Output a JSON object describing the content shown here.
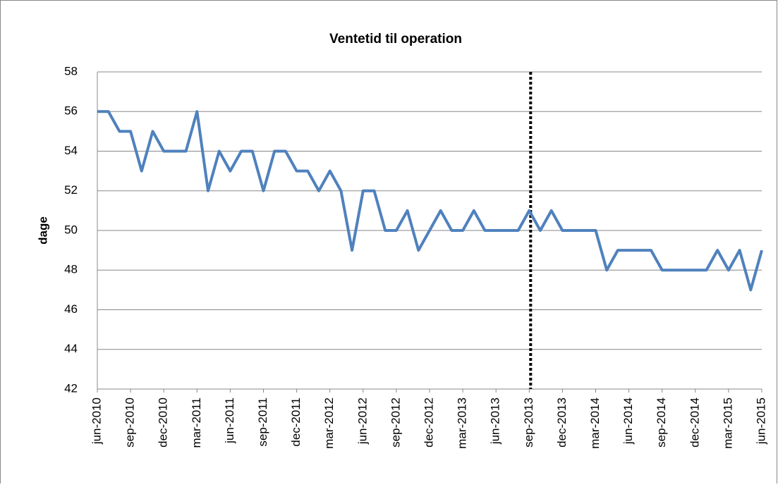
{
  "chart_data": {
    "type": "line",
    "title": "Ventetid til operation",
    "y_label": "dage",
    "categories": [
      "jun-2010",
      null,
      null,
      "sep-2010",
      null,
      null,
      "dec-2010",
      null,
      null,
      "mar-2011",
      null,
      null,
      "jun-2011",
      null,
      null,
      "sep-2011",
      null,
      null,
      "dec-2011",
      null,
      null,
      "mar-2012",
      null,
      null,
      "jun-2012",
      null,
      null,
      "sep-2012",
      null,
      null,
      "dec-2012",
      null,
      null,
      "mar-2013",
      null,
      null,
      "jun-2013",
      null,
      null,
      "sep-2013",
      null,
      null,
      "dec-2013",
      null,
      null,
      "mar-2014",
      null,
      null,
      "jun-2014",
      null,
      null,
      "sep-2014",
      null,
      null,
      "dec-2014",
      null,
      null,
      "mar-2015",
      null,
      null,
      "jun-2015"
    ],
    "series": [
      {
        "name": "Ventetid",
        "color": "#4f81bd",
        "values": [
          56,
          56,
          55,
          55,
          53,
          55,
          54,
          54,
          54,
          56,
          52,
          54,
          53,
          54,
          54,
          52,
          54,
          54,
          53,
          53,
          52,
          53,
          52,
          49,
          52,
          52,
          50,
          50,
          51,
          49,
          50,
          51,
          50,
          50,
          51,
          50,
          50,
          50,
          50,
          51,
          50,
          51,
          50,
          50,
          50,
          50,
          48,
          49,
          49,
          49,
          49,
          48,
          48,
          48,
          48,
          48,
          49,
          48,
          49,
          47,
          49
        ]
      }
    ],
    "ylim": [
      42,
      58
    ],
    "yticks": [
      42,
      44,
      46,
      48,
      50,
      52,
      54,
      56,
      58
    ],
    "grid": true,
    "reference_line": {
      "at": "sep-2013",
      "style": "dotted",
      "color": "#000000"
    }
  }
}
